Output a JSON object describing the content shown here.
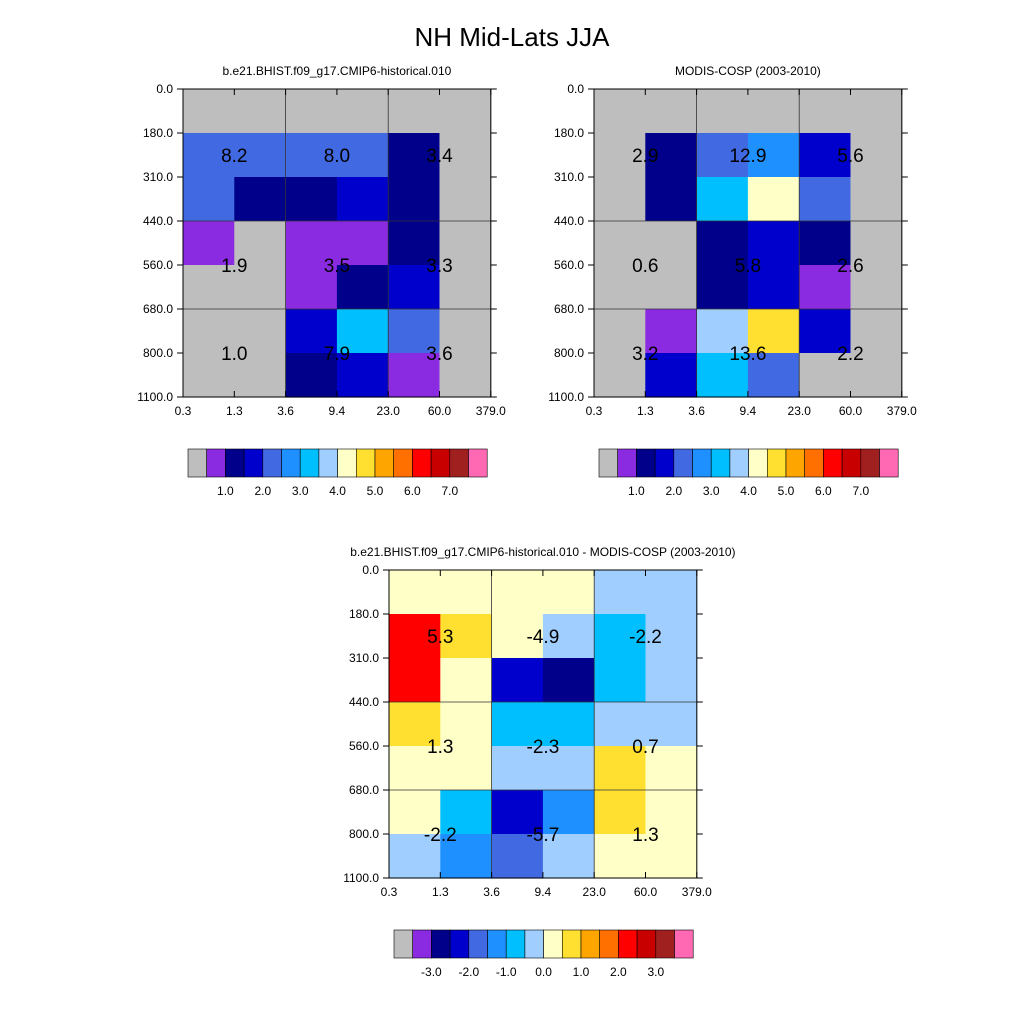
{
  "figure_title": "NH Mid-Lats JJA",
  "colors": {
    "missing": "#bebebe",
    "top_palette": [
      "#bebebe",
      "#8a2be2",
      "#00008b",
      "#0000cd",
      "#4169e1",
      "#1e90ff",
      "#00bfff",
      "#a0cfff",
      "#ffffc8",
      "#ffe030",
      "#ffa500",
      "#ff7000",
      "#ff0000",
      "#c80000",
      "#a02020",
      "#ff69b4"
    ],
    "diff_palette": [
      "#bebebe",
      "#8a2be2",
      "#00008b",
      "#0000cd",
      "#4169e1",
      "#1e90ff",
      "#00bfff",
      "#a0cfff",
      "#ffffc8",
      "#ffe030",
      "#ffa500",
      "#ff7000",
      "#ff0000",
      "#c80000",
      "#a02020",
      "#ff69b4"
    ]
  },
  "chart_data": [
    {
      "type": "heatmap",
      "title": "b.e21.BHIST.f09_g17.CMIP6-historical.010",
      "x_tick_labels": [
        "0.3",
        "1.3",
        "3.6",
        "9.4",
        "23.0",
        "60.0",
        "379.0"
      ],
      "y_tick_labels": [
        "0.0",
        "180.0",
        "310.0",
        "440.0",
        "560.0",
        "680.0",
        "800.0",
        "1100.0"
      ],
      "cell_colors": [
        [
          "#bebebe",
          "#bebebe",
          "#bebebe",
          "#bebebe",
          "#bebebe",
          "#bebebe"
        ],
        [
          "#4169e1",
          "#4169e1",
          "#4169e1",
          "#4169e1",
          "#00008b",
          "#bebebe"
        ],
        [
          "#4169e1",
          "#00008b",
          "#00008b",
          "#0000cd",
          "#00008b",
          "#bebebe"
        ],
        [
          "#8a2be2",
          "#bebebe",
          "#8a2be2",
          "#8a2be2",
          "#00008b",
          "#bebebe"
        ],
        [
          "#bebebe",
          "#bebebe",
          "#8a2be2",
          "#00008b",
          "#0000cd",
          "#bebebe"
        ],
        [
          "#bebebe",
          "#bebebe",
          "#0000cd",
          "#00bfff",
          "#4169e1",
          "#bebebe"
        ],
        [
          "#bebebe",
          "#bebebe",
          "#00008b",
          "#0000cd",
          "#8a2be2",
          "#bebebe"
        ]
      ],
      "totals": [
        {
          "label": "8.2",
          "col": 0,
          "row": 0
        },
        {
          "label": "8.0",
          "col": 1,
          "row": 0
        },
        {
          "label": "3.4",
          "col": 2,
          "row": 0
        },
        {
          "label": "1.9",
          "col": 0,
          "row": 1
        },
        {
          "label": "3.5",
          "col": 1,
          "row": 1
        },
        {
          "label": "3.3",
          "col": 2,
          "row": 1
        },
        {
          "label": "1.0",
          "col": 0,
          "row": 2
        },
        {
          "label": "7.9",
          "col": 1,
          "row": 2
        },
        {
          "label": "3.6",
          "col": 2,
          "row": 2
        }
      ],
      "colorbar_palette": "top_palette",
      "colorbar_labels": [
        {
          "text": "1.0",
          "after_box": 3
        },
        {
          "text": "2.0",
          "after_box": 4
        },
        {
          "text": "3.0",
          "after_box": 5
        },
        {
          "text": "4.0",
          "after_box": 6
        },
        {
          "text": "5.0",
          "after_box": 7
        },
        {
          "text": "6.0",
          "after_box": 8
        },
        {
          "text": "7.0",
          "after_box": 9
        }
      ]
    },
    {
      "type": "heatmap",
      "title": "MODIS-COSP (2003-2010)",
      "x_tick_labels": [
        "0.3",
        "1.3",
        "3.6",
        "9.4",
        "23.0",
        "60.0",
        "379.0"
      ],
      "y_tick_labels": [
        "0.0",
        "180.0",
        "310.0",
        "440.0",
        "560.0",
        "680.0",
        "800.0",
        "1100.0"
      ],
      "cell_colors": [
        [
          "#bebebe",
          "#bebebe",
          "#bebebe",
          "#bebebe",
          "#bebebe",
          "#bebebe"
        ],
        [
          "#bebebe",
          "#00008b",
          "#4169e1",
          "#1e90ff",
          "#0000cd",
          "#bebebe"
        ],
        [
          "#bebebe",
          "#00008b",
          "#00bfff",
          "#ffffc8",
          "#4169e1",
          "#bebebe"
        ],
        [
          "#bebebe",
          "#bebebe",
          "#00008b",
          "#0000cd",
          "#00008b",
          "#bebebe"
        ],
        [
          "#bebebe",
          "#bebebe",
          "#00008b",
          "#0000cd",
          "#8a2be2",
          "#bebebe"
        ],
        [
          "#bebebe",
          "#8a2be2",
          "#a0cfff",
          "#ffe030",
          "#0000cd",
          "#bebebe"
        ],
        [
          "#bebebe",
          "#0000cd",
          "#00bfff",
          "#4169e1",
          "#bebebe",
          "#bebebe"
        ]
      ],
      "totals": [
        {
          "label": "2.9",
          "col": 0,
          "row": 0
        },
        {
          "label": "12.9",
          "col": 1,
          "row": 0
        },
        {
          "label": "5.6",
          "col": 2,
          "row": 0
        },
        {
          "label": "0.6",
          "col": 0,
          "row": 1
        },
        {
          "label": "5.8",
          "col": 1,
          "row": 1
        },
        {
          "label": "2.6",
          "col": 2,
          "row": 1
        },
        {
          "label": "3.2",
          "col": 0,
          "row": 2
        },
        {
          "label": "13.6",
          "col": 1,
          "row": 2
        },
        {
          "label": "2.2",
          "col": 2,
          "row": 2
        }
      ],
      "colorbar_palette": "top_palette",
      "colorbar_labels": [
        {
          "text": "1.0",
          "after_box": 3
        },
        {
          "text": "2.0",
          "after_box": 4
        },
        {
          "text": "3.0",
          "after_box": 5
        },
        {
          "text": "4.0",
          "after_box": 6
        },
        {
          "text": "5.0",
          "after_box": 7
        },
        {
          "text": "6.0",
          "after_box": 8
        },
        {
          "text": "7.0",
          "after_box": 9
        }
      ]
    },
    {
      "type": "heatmap",
      "title": "b.e21.BHIST.f09_g17.CMIP6-historical.010 - MODIS-COSP (2003-2010)",
      "x_tick_labels": [
        "0.3",
        "1.3",
        "3.6",
        "9.4",
        "23.0",
        "60.0",
        "379.0"
      ],
      "y_tick_labels": [
        "0.0",
        "180.0",
        "310.0",
        "440.0",
        "560.0",
        "680.0",
        "800.0",
        "1100.0"
      ],
      "cell_colors": [
        [
          "#ffffc8",
          "#ffffc8",
          "#ffffc8",
          "#ffffc8",
          "#a0cfff",
          "#a0cfff"
        ],
        [
          "#ff0000",
          "#ffe030",
          "#ffffc8",
          "#a0cfff",
          "#00bfff",
          "#a0cfff"
        ],
        [
          "#ff0000",
          "#ffffc8",
          "#0000cd",
          "#00008b",
          "#00bfff",
          "#a0cfff"
        ],
        [
          "#ffe030",
          "#ffffc8",
          "#00bfff",
          "#00bfff",
          "#a0cfff",
          "#a0cfff"
        ],
        [
          "#ffffc8",
          "#ffffc8",
          "#a0cfff",
          "#a0cfff",
          "#ffe030",
          "#ffffc8"
        ],
        [
          "#ffffc8",
          "#00bfff",
          "#0000cd",
          "#1e90ff",
          "#ffe030",
          "#ffffc8"
        ],
        [
          "#a0cfff",
          "#1e90ff",
          "#4169e1",
          "#a0cfff",
          "#ffffc8",
          "#ffffc8"
        ]
      ],
      "totals": [
        {
          "label": "5.3",
          "col": 0,
          "row": 0
        },
        {
          "label": "-4.9",
          "col": 1,
          "row": 0
        },
        {
          "label": "-2.2",
          "col": 2,
          "row": 0
        },
        {
          "label": "1.3",
          "col": 0,
          "row": 1
        },
        {
          "label": "-2.3",
          "col": 1,
          "row": 1
        },
        {
          "label": "0.7",
          "col": 2,
          "row": 1
        },
        {
          "label": "-2.2",
          "col": 0,
          "row": 2
        },
        {
          "label": "-5.7",
          "col": 1,
          "row": 2
        },
        {
          "label": "1.3",
          "col": 2,
          "row": 2
        }
      ],
      "colorbar_palette": "diff_palette",
      "colorbar_labels": [
        {
          "text": "-3.0",
          "after_box": 3
        },
        {
          "text": "-2.0",
          "after_box": 4
        },
        {
          "text": "-1.0",
          "after_box": 5
        },
        {
          "text": "0.0",
          "after_box": 6
        },
        {
          "text": "1.0",
          "after_box": 7
        },
        {
          "text": "2.0",
          "after_box": 8
        },
        {
          "text": "3.0",
          "after_box": 9
        }
      ]
    }
  ]
}
